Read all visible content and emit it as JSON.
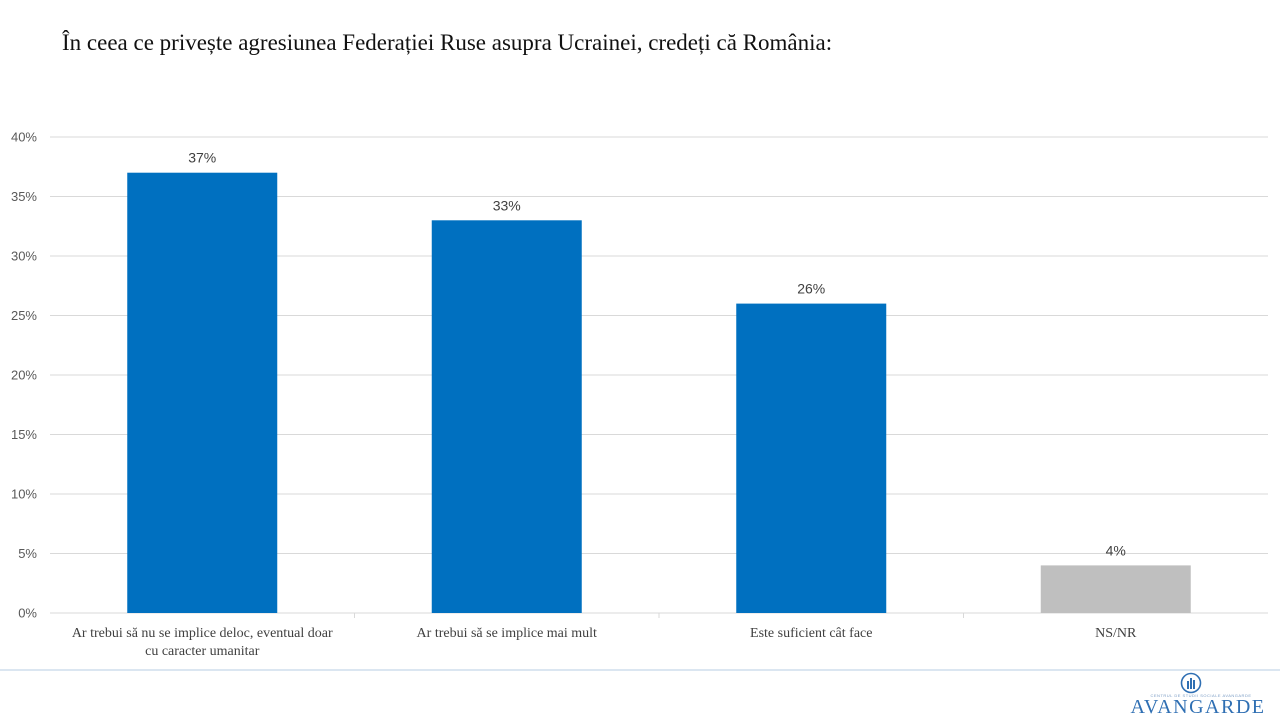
{
  "title": "În ceea ce privește agresiunea Federației Ruse asupra Ucrainei, credeți că România:",
  "chart_data": {
    "type": "bar",
    "categories": [
      [
        "Ar trebui să nu se implice deloc, eventual doar",
        "cu caracter umanitar"
      ],
      [
        "Ar trebui să se implice mai mult"
      ],
      [
        "Este suficient cât face"
      ],
      [
        "NS/NR"
      ]
    ],
    "values": [
      37,
      33,
      26,
      4
    ],
    "data_labels": [
      "37%",
      "33%",
      "26%",
      "4%"
    ],
    "bar_colors": [
      "#0070c0",
      "#0070c0",
      "#0070c0",
      "#bfbfbf"
    ],
    "ylim": [
      0,
      40
    ],
    "yticks": [
      0,
      5,
      10,
      15,
      20,
      25,
      30,
      35,
      40
    ],
    "ytick_labels": [
      "0%",
      "5%",
      "10%",
      "15%",
      "20%",
      "25%",
      "30%",
      "35%",
      "40%"
    ],
    "grid": true,
    "gridline_color": "#d9d9d9"
  },
  "logo": {
    "text": "AVANGARDE",
    "small_text": "CENTRUL DE STUDII SOCIALE AVANGARDE",
    "icon": "avangarde-logo-icon",
    "color": "#2f6fb3"
  }
}
